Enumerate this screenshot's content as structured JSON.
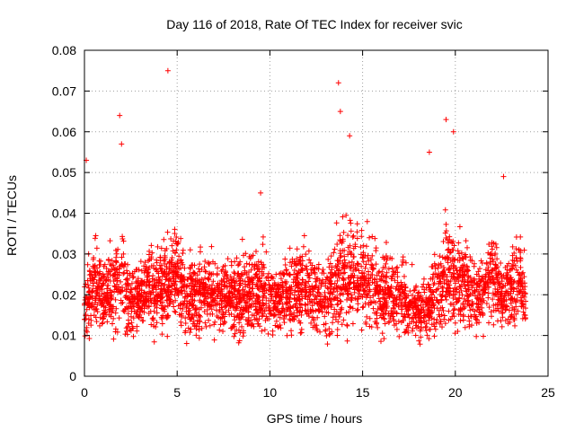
{
  "chart_data": {
    "type": "scatter",
    "title": "Day 116 of 2018, Rate Of TEC Index for receiver svic",
    "xlabel": "GPS time / hours",
    "ylabel": "ROTI / TECUs",
    "xlim": [
      0,
      25
    ],
    "ylim": [
      0,
      0.08
    ],
    "x_ticks": [
      0,
      5,
      10,
      15,
      20,
      25
    ],
    "x_tick_labels": [
      "0",
      "5",
      "10",
      "15",
      "20",
      "25"
    ],
    "y_ticks": [
      0,
      0.01,
      0.02,
      0.03,
      0.04,
      0.05,
      0.06,
      0.07,
      0.08
    ],
    "y_tick_labels": [
      "0",
      "0.01",
      "0.02",
      "0.03",
      "0.04",
      "0.05",
      "0.06",
      "0.07",
      "0.08"
    ],
    "grid": true,
    "marker": "plus",
    "marker_color": "#ff0000",
    "series": [
      {
        "name": "ROTI",
        "profile_hours": [
          0,
          0.5,
          1,
          1.5,
          2,
          2.5,
          3,
          3.5,
          4,
          4.5,
          5,
          5.5,
          6,
          6.5,
          7,
          7.5,
          8,
          8.5,
          9,
          9.5,
          10,
          10.5,
          11,
          11.5,
          12,
          12.5,
          13,
          13.5,
          14,
          14.5,
          15,
          15.5,
          16,
          16.5,
          17,
          17.5,
          18,
          18.5,
          19,
          19.5,
          20,
          20.5,
          21,
          21.5,
          22,
          22.5,
          23,
          23.5,
          23.8
        ],
        "profile_median": [
          0.018,
          0.022,
          0.02,
          0.02,
          0.026,
          0.017,
          0.019,
          0.022,
          0.02,
          0.023,
          0.025,
          0.02,
          0.02,
          0.021,
          0.019,
          0.02,
          0.019,
          0.02,
          0.021,
          0.023,
          0.019,
          0.019,
          0.02,
          0.021,
          0.022,
          0.02,
          0.018,
          0.022,
          0.026,
          0.025,
          0.024,
          0.023,
          0.02,
          0.02,
          0.019,
          0.017,
          0.016,
          0.017,
          0.02,
          0.025,
          0.024,
          0.022,
          0.02,
          0.021,
          0.025,
          0.02,
          0.022,
          0.023,
          0.018
        ],
        "profile_spread": [
          0.008,
          0.01,
          0.009,
          0.009,
          0.012,
          0.008,
          0.008,
          0.009,
          0.009,
          0.01,
          0.011,
          0.009,
          0.009,
          0.009,
          0.008,
          0.008,
          0.008,
          0.009,
          0.01,
          0.011,
          0.008,
          0.008,
          0.009,
          0.009,
          0.009,
          0.009,
          0.008,
          0.011,
          0.013,
          0.012,
          0.011,
          0.01,
          0.009,
          0.009,
          0.008,
          0.007,
          0.007,
          0.007,
          0.01,
          0.012,
          0.012,
          0.01,
          0.009,
          0.009,
          0.011,
          0.009,
          0.01,
          0.01,
          0.008
        ],
        "peaks": [
          {
            "x": 0.1,
            "y": 0.053
          },
          {
            "x": 1.9,
            "y": 0.064
          },
          {
            "x": 2.0,
            "y": 0.057
          },
          {
            "x": 4.5,
            "y": 0.075
          },
          {
            "x": 9.5,
            "y": 0.045
          },
          {
            "x": 13.7,
            "y": 0.072
          },
          {
            "x": 13.8,
            "y": 0.065
          },
          {
            "x": 14.3,
            "y": 0.059
          },
          {
            "x": 19.5,
            "y": 0.063
          },
          {
            "x": 19.9,
            "y": 0.06
          },
          {
            "x": 18.6,
            "y": 0.055
          },
          {
            "x": 22.6,
            "y": 0.049
          }
        ],
        "min_value": 0.004
      }
    ]
  }
}
